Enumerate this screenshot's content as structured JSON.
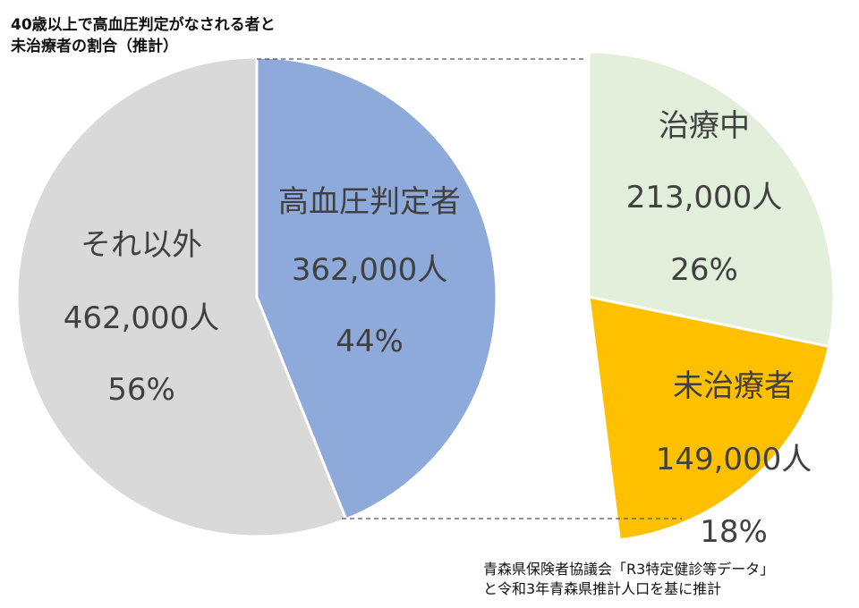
{
  "chart_data": [
    {
      "type": "pie",
      "title": "40歳以上で高血圧判定がなされる者と未治療者の割合（推計）",
      "title_lines": [
        "40歳以上で高血圧判定がなされる者と",
        "未治療者の割合（推計）"
      ],
      "slices": [
        {
          "name": "高血圧判定者",
          "value": 362000,
          "value_label": "362,000人",
          "percent_label": "44%",
          "color": "#8eaadb"
        },
        {
          "name": "それ以外",
          "value": 462000,
          "value_label": "462,000人",
          "percent_label": "56%",
          "color": "#d9d9d9"
        }
      ]
    },
    {
      "type": "pie",
      "breakout_of": "高血圧判定者",
      "slices": [
        {
          "name": "治療中",
          "value": 213000,
          "value_label": "213,000人",
          "percent_label": "26%",
          "color": "#e2efda"
        },
        {
          "name": "未治療者",
          "value": 149000,
          "value_label": "149,000人",
          "percent_label": "18%",
          "color": "#ffc000"
        }
      ]
    }
  ],
  "source_lines": [
    "青森県保険者協議会「R3特定健診等データ」",
    "と令和3年青森県推計人口を基に推計"
  ]
}
